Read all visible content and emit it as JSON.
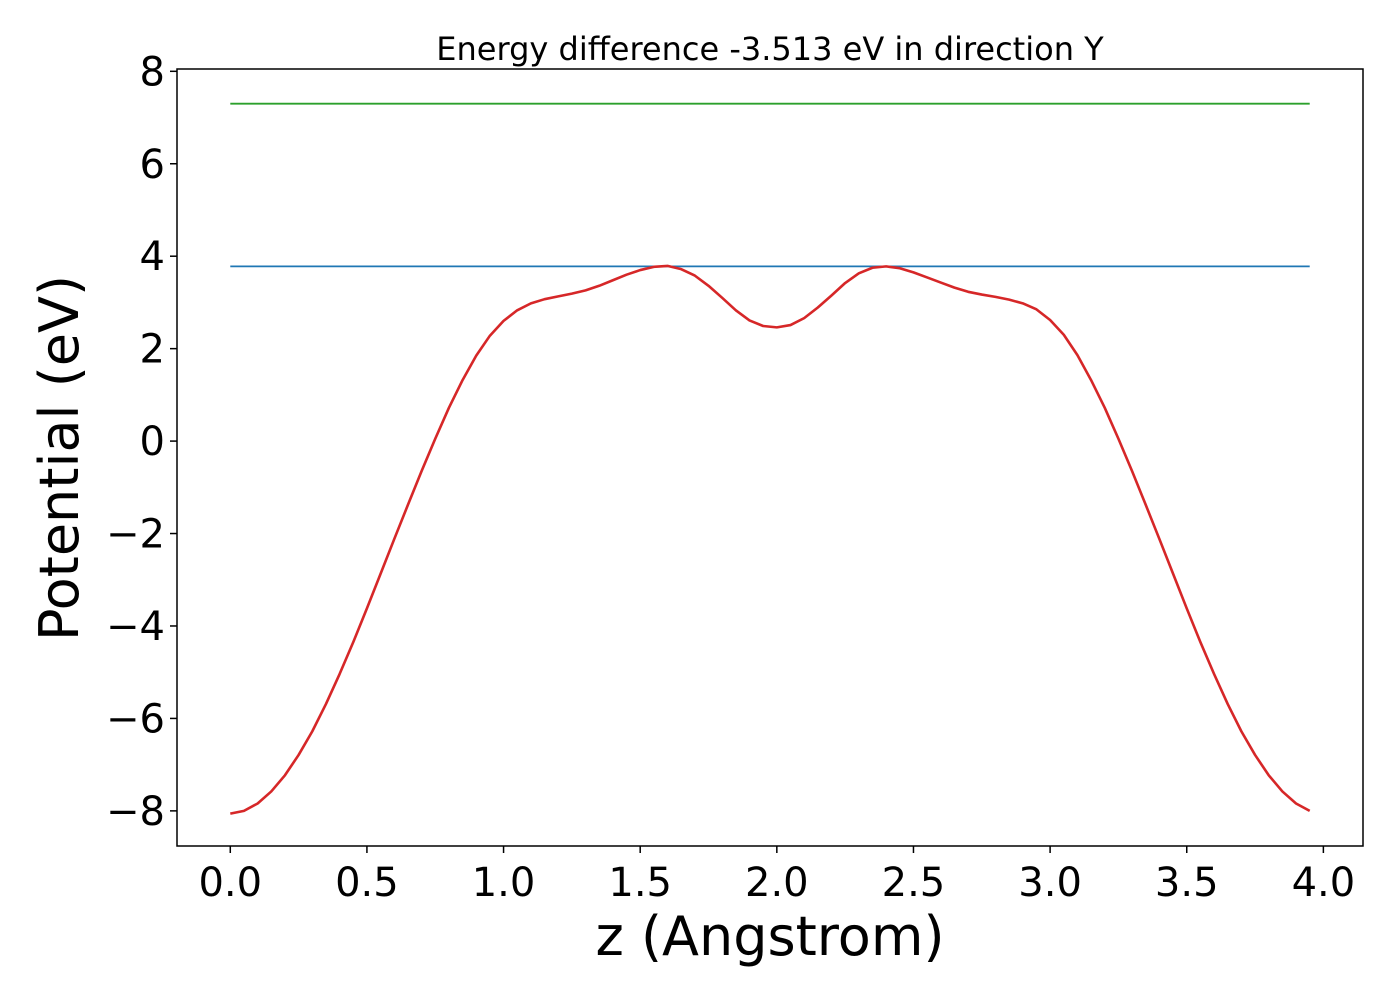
{
  "chart_data": {
    "type": "line",
    "title": "Energy difference -3.513 eV in direction Y",
    "xlabel": "z (Angstrom)",
    "ylabel": "Potential (eV)",
    "xlim": [
      -0.195,
      4.145
    ],
    "ylim": [
      -8.76,
      8.05
    ],
    "grid": false,
    "legend": "none",
    "x_ticks": [
      0.0,
      0.5,
      1.0,
      1.5,
      2.0,
      2.5,
      3.0,
      3.5,
      4.0
    ],
    "x_tick_labels": [
      "0.0",
      "0.5",
      "1.0",
      "1.5",
      "2.0",
      "2.5",
      "3.0",
      "3.5",
      "4.0"
    ],
    "y_ticks": [
      -8,
      -6,
      -4,
      -2,
      0,
      2,
      4,
      6,
      8
    ],
    "y_tick_labels": [
      "−8",
      "−6",
      "−4",
      "−2",
      "0",
      "2",
      "4",
      "6",
      "8"
    ],
    "series": [
      {
        "color": "#2ca02c",
        "x": [
          0.0,
          3.95
        ],
        "y": [
          7.3,
          7.3
        ]
      },
      {
        "color": "#1f77b4",
        "x": [
          0.0,
          3.95
        ],
        "y": [
          3.78,
          3.78
        ]
      },
      {
        "color": "#d62728",
        "x": [
          0.0,
          0.05,
          0.1,
          0.15,
          0.2,
          0.25,
          0.3,
          0.35,
          0.4,
          0.45,
          0.5,
          0.55,
          0.6,
          0.65,
          0.7,
          0.75,
          0.8,
          0.85,
          0.9,
          0.95,
          1.0,
          1.05,
          1.1,
          1.15,
          1.2,
          1.25,
          1.3,
          1.35,
          1.4,
          1.45,
          1.5,
          1.55,
          1.6,
          1.65,
          1.7,
          1.75,
          1.8,
          1.85,
          1.9,
          1.95,
          2.0,
          2.05,
          2.1,
          2.15,
          2.2,
          2.25,
          2.3,
          2.35,
          2.4,
          2.45,
          2.5,
          2.55,
          2.6,
          2.65,
          2.7,
          2.75,
          2.8,
          2.85,
          2.9,
          2.95,
          3.0,
          3.05,
          3.1,
          3.15,
          3.2,
          3.25,
          3.3,
          3.35,
          3.4,
          3.45,
          3.5,
          3.55,
          3.6,
          3.65,
          3.7,
          3.75,
          3.8,
          3.85,
          3.9,
          3.95
        ],
        "y": [
          -8.06,
          -8.0,
          -7.84,
          -7.58,
          -7.23,
          -6.79,
          -6.28,
          -5.69,
          -5.04,
          -4.35,
          -3.62,
          -2.87,
          -2.12,
          -1.38,
          -0.65,
          0.05,
          0.72,
          1.32,
          1.85,
          2.28,
          2.6,
          2.83,
          2.98,
          3.07,
          3.13,
          3.19,
          3.26,
          3.36,
          3.48,
          3.6,
          3.7,
          3.77,
          3.79,
          3.72,
          3.58,
          3.36,
          3.1,
          2.83,
          2.61,
          2.49,
          2.46,
          2.51,
          2.66,
          2.89,
          3.15,
          3.42,
          3.63,
          3.75,
          3.78,
          3.74,
          3.65,
          3.54,
          3.43,
          3.32,
          3.23,
          3.17,
          3.12,
          3.06,
          2.98,
          2.85,
          2.62,
          2.3,
          1.86,
          1.32,
          0.72,
          0.05,
          -0.65,
          -1.38,
          -2.12,
          -2.87,
          -3.62,
          -4.35,
          -5.04,
          -5.69,
          -6.28,
          -6.79,
          -7.23,
          -7.58,
          -7.84,
          -8.0
        ]
      }
    ]
  }
}
